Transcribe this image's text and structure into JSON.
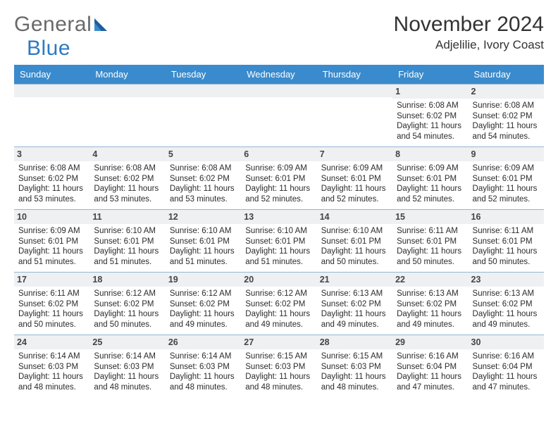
{
  "brand": {
    "word1": "General",
    "word2": "Blue"
  },
  "title": "November 2024",
  "location": "Adjelilie, Ivory Coast",
  "style": {
    "header_bg": "#3a8bcd",
    "header_fg": "#ffffff",
    "row_border": "#94b7d6",
    "daynum_bg": "#eef0f2",
    "page_bg": "#ffffff",
    "text_color": "#2b2b2b",
    "logo_gray": "#6a6a6a",
    "logo_blue": "#2e7abf",
    "title_color": "#333333",
    "body_fontsize": 11.5,
    "header_fontsize": 13,
    "title_fontsize": 30,
    "location_fontsize": 17
  },
  "day_headers": [
    "Sunday",
    "Monday",
    "Tuesday",
    "Wednesday",
    "Thursday",
    "Friday",
    "Saturday"
  ],
  "weeks": [
    [
      null,
      null,
      null,
      null,
      null,
      {
        "d": "1",
        "sr": "6:08 AM",
        "ss": "6:02 PM",
        "dl": "11 hours and 54 minutes."
      },
      {
        "d": "2",
        "sr": "6:08 AM",
        "ss": "6:02 PM",
        "dl": "11 hours and 54 minutes."
      }
    ],
    [
      {
        "d": "3",
        "sr": "6:08 AM",
        "ss": "6:02 PM",
        "dl": "11 hours and 53 minutes."
      },
      {
        "d": "4",
        "sr": "6:08 AM",
        "ss": "6:02 PM",
        "dl": "11 hours and 53 minutes."
      },
      {
        "d": "5",
        "sr": "6:08 AM",
        "ss": "6:02 PM",
        "dl": "11 hours and 53 minutes."
      },
      {
        "d": "6",
        "sr": "6:09 AM",
        "ss": "6:01 PM",
        "dl": "11 hours and 52 minutes."
      },
      {
        "d": "7",
        "sr": "6:09 AM",
        "ss": "6:01 PM",
        "dl": "11 hours and 52 minutes."
      },
      {
        "d": "8",
        "sr": "6:09 AM",
        "ss": "6:01 PM",
        "dl": "11 hours and 52 minutes."
      },
      {
        "d": "9",
        "sr": "6:09 AM",
        "ss": "6:01 PM",
        "dl": "11 hours and 52 minutes."
      }
    ],
    [
      {
        "d": "10",
        "sr": "6:09 AM",
        "ss": "6:01 PM",
        "dl": "11 hours and 51 minutes."
      },
      {
        "d": "11",
        "sr": "6:10 AM",
        "ss": "6:01 PM",
        "dl": "11 hours and 51 minutes."
      },
      {
        "d": "12",
        "sr": "6:10 AM",
        "ss": "6:01 PM",
        "dl": "11 hours and 51 minutes."
      },
      {
        "d": "13",
        "sr": "6:10 AM",
        "ss": "6:01 PM",
        "dl": "11 hours and 51 minutes."
      },
      {
        "d": "14",
        "sr": "6:10 AM",
        "ss": "6:01 PM",
        "dl": "11 hours and 50 minutes."
      },
      {
        "d": "15",
        "sr": "6:11 AM",
        "ss": "6:01 PM",
        "dl": "11 hours and 50 minutes."
      },
      {
        "d": "16",
        "sr": "6:11 AM",
        "ss": "6:01 PM",
        "dl": "11 hours and 50 minutes."
      }
    ],
    [
      {
        "d": "17",
        "sr": "6:11 AM",
        "ss": "6:02 PM",
        "dl": "11 hours and 50 minutes."
      },
      {
        "d": "18",
        "sr": "6:12 AM",
        "ss": "6:02 PM",
        "dl": "11 hours and 50 minutes."
      },
      {
        "d": "19",
        "sr": "6:12 AM",
        "ss": "6:02 PM",
        "dl": "11 hours and 49 minutes."
      },
      {
        "d": "20",
        "sr": "6:12 AM",
        "ss": "6:02 PM",
        "dl": "11 hours and 49 minutes."
      },
      {
        "d": "21",
        "sr": "6:13 AM",
        "ss": "6:02 PM",
        "dl": "11 hours and 49 minutes."
      },
      {
        "d": "22",
        "sr": "6:13 AM",
        "ss": "6:02 PM",
        "dl": "11 hours and 49 minutes."
      },
      {
        "d": "23",
        "sr": "6:13 AM",
        "ss": "6:02 PM",
        "dl": "11 hours and 49 minutes."
      }
    ],
    [
      {
        "d": "24",
        "sr": "6:14 AM",
        "ss": "6:03 PM",
        "dl": "11 hours and 48 minutes."
      },
      {
        "d": "25",
        "sr": "6:14 AM",
        "ss": "6:03 PM",
        "dl": "11 hours and 48 minutes."
      },
      {
        "d": "26",
        "sr": "6:14 AM",
        "ss": "6:03 PM",
        "dl": "11 hours and 48 minutes."
      },
      {
        "d": "27",
        "sr": "6:15 AM",
        "ss": "6:03 PM",
        "dl": "11 hours and 48 minutes."
      },
      {
        "d": "28",
        "sr": "6:15 AM",
        "ss": "6:03 PM",
        "dl": "11 hours and 48 minutes."
      },
      {
        "d": "29",
        "sr": "6:16 AM",
        "ss": "6:04 PM",
        "dl": "11 hours and 47 minutes."
      },
      {
        "d": "30",
        "sr": "6:16 AM",
        "ss": "6:04 PM",
        "dl": "11 hours and 47 minutes."
      }
    ]
  ],
  "labels": {
    "sunrise": "Sunrise: ",
    "sunset": "Sunset: ",
    "daylight": "Daylight: "
  }
}
